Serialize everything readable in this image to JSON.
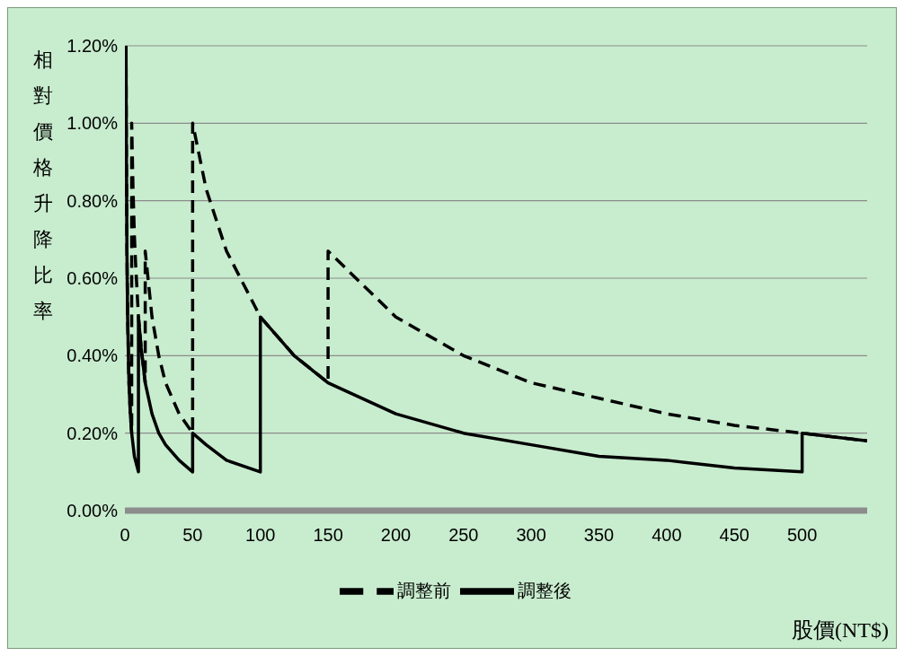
{
  "chart_data": {
    "type": "line",
    "xlabel": "股價(NT$)",
    "ylabel": "相對價格升降比率",
    "xlim": [
      0,
      548
    ],
    "xticks": [
      0,
      50,
      100,
      150,
      200,
      250,
      300,
      350,
      400,
      450,
      500
    ],
    "ylim": [
      0,
      1.2
    ],
    "yticks": [
      {
        "value": 0,
        "label": "0.00%"
      },
      {
        "value": 0.2,
        "label": "0.20%"
      },
      {
        "value": 0.4,
        "label": "0.40%"
      },
      {
        "value": 0.6,
        "label": "0.60%"
      },
      {
        "value": 0.8,
        "label": "0.80%"
      },
      {
        "value": 1.0,
        "label": "1.00%"
      },
      {
        "value": 1.2,
        "label": "1.20%"
      }
    ],
    "grid": "y",
    "legend": "bottom",
    "marker": "none",
    "series": [
      {
        "name": "調整前",
        "color": "#000000",
        "line_style": "dashed",
        "x": [
          0.83,
          1,
          1.5,
          2,
          3,
          4,
          5,
          5,
          6,
          7,
          8,
          10,
          12,
          15,
          15,
          20,
          25,
          30,
          40,
          50,
          50,
          60,
          75,
          100,
          125,
          150,
          150,
          200,
          250,
          300,
          350,
          400,
          450,
          500,
          548
        ],
        "values": [
          1.2,
          1.0,
          0.67,
          0.5,
          0.33,
          0.25,
          0.2,
          1.0,
          0.83,
          0.71,
          0.63,
          0.5,
          0.42,
          0.33,
          0.67,
          0.5,
          0.4,
          0.33,
          0.25,
          0.2,
          1.0,
          0.83,
          0.67,
          0.5,
          0.4,
          0.33,
          0.67,
          0.5,
          0.4,
          0.33,
          0.29,
          0.25,
          0.22,
          0.2,
          0.18
        ]
      },
      {
        "name": "調整後",
        "color": "#000000",
        "line_style": "solid",
        "x": [
          0.83,
          1,
          1.5,
          2,
          3,
          4,
          5,
          7,
          10,
          10,
          12,
          15,
          20,
          25,
          30,
          40,
          50,
          50,
          60,
          75,
          100,
          100,
          125,
          150,
          200,
          250,
          300,
          350,
          400,
          450,
          500,
          500,
          548
        ],
        "values": [
          1.2,
          1.0,
          0.67,
          0.5,
          0.33,
          0.25,
          0.2,
          0.14,
          0.1,
          0.5,
          0.42,
          0.33,
          0.25,
          0.2,
          0.17,
          0.13,
          0.1,
          0.2,
          0.17,
          0.13,
          0.1,
          0.5,
          0.4,
          0.33,
          0.25,
          0.2,
          0.17,
          0.14,
          0.13,
          0.11,
          0.1,
          0.2,
          0.18
        ]
      }
    ]
  }
}
